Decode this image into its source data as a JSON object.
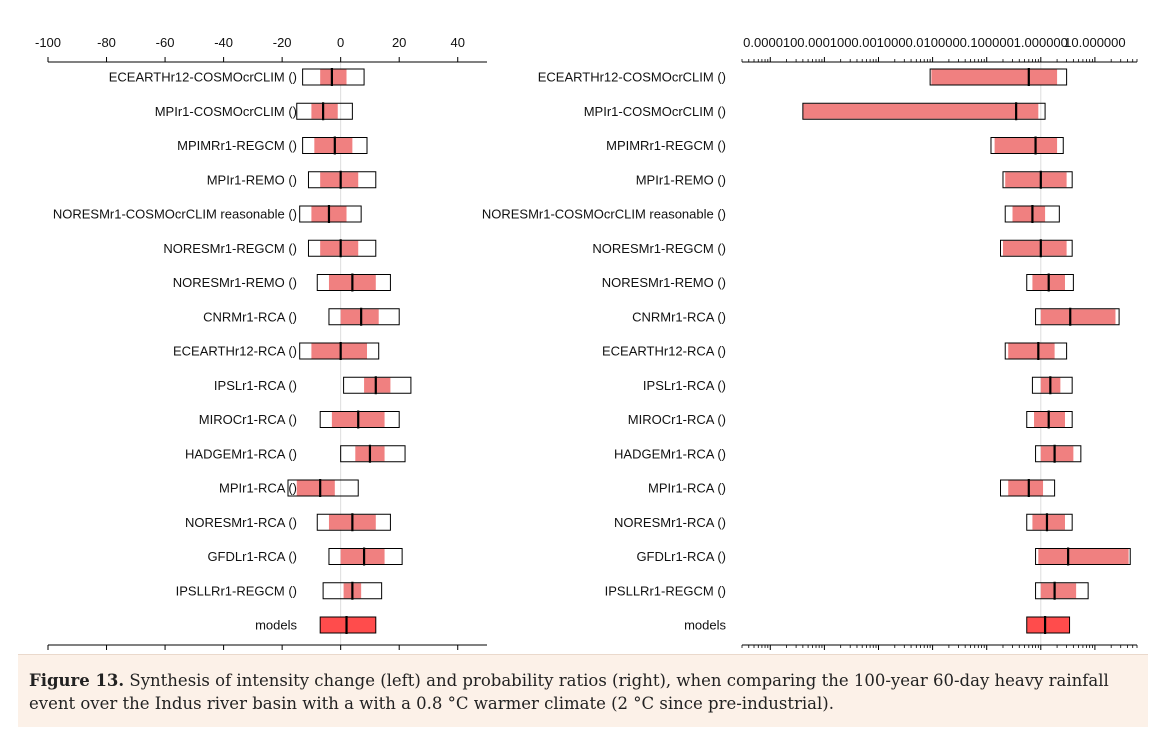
{
  "chart_data": [
    {
      "type": "box",
      "title": "",
      "xlabel": "",
      "ylabel": "",
      "xscale": "linear",
      "xlim": [
        -100,
        50
      ],
      "ticks": [
        -100,
        -80,
        -60,
        -40,
        -20,
        0,
        20,
        40
      ],
      "tick_labels": [
        "-100",
        "-80",
        "-60",
        "-40",
        "-20",
        "0",
        "20",
        "40"
      ],
      "reference_line": 0,
      "series": [
        {
          "name": "ECEARTHr12-COSMOcrCLIM ()",
          "best": -3,
          "ci_low": -13,
          "ci_high": 8,
          "shade_low": -7,
          "shade_high": 2
        },
        {
          "name": "MPIr1-COSMOcrCLIM ()",
          "best": -6,
          "ci_low": -15,
          "ci_high": 4,
          "shade_low": -10,
          "shade_high": -1
        },
        {
          "name": "MPIMRr1-REGCM ()",
          "best": -2,
          "ci_low": -13,
          "ci_high": 9,
          "shade_low": -9,
          "shade_high": 4
        },
        {
          "name": "MPIr1-REMO ()",
          "best": 0,
          "ci_low": -11,
          "ci_high": 12,
          "shade_low": -7,
          "shade_high": 6
        },
        {
          "name": "NORESMr1-COSMOcrCLIM reasonable ()",
          "best": -4,
          "ci_low": -14,
          "ci_high": 7,
          "shade_low": -10,
          "shade_high": 2
        },
        {
          "name": "NORESMr1-REGCM ()",
          "best": 0,
          "ci_low": -11,
          "ci_high": 12,
          "shade_low": -7,
          "shade_high": 6
        },
        {
          "name": "NORESMr1-REMO ()",
          "best": 4,
          "ci_low": -8,
          "ci_high": 17,
          "shade_low": -4,
          "shade_high": 12
        },
        {
          "name": "CNRMr1-RCA ()",
          "best": 7,
          "ci_low": -4,
          "ci_high": 20,
          "shade_low": 0,
          "shade_high": 13
        },
        {
          "name": "ECEARTHr12-RCA ()",
          "best": 0,
          "ci_low": -14,
          "ci_high": 13,
          "shade_low": -10,
          "shade_high": 9
        },
        {
          "name": "IPSLr1-RCA ()",
          "best": 12,
          "ci_low": 1,
          "ci_high": 24,
          "shade_low": 8,
          "shade_high": 17
        },
        {
          "name": "MIROCr1-RCA ()",
          "best": 6,
          "ci_low": -7,
          "ci_high": 20,
          "shade_low": -3,
          "shade_high": 15
        },
        {
          "name": "HADGEMr1-RCA ()",
          "best": 10,
          "ci_low": 0,
          "ci_high": 22,
          "shade_low": 5,
          "shade_high": 15
        },
        {
          "name": "MPIr1-RCA ()",
          "best": -7,
          "ci_low": -18,
          "ci_high": 6,
          "shade_low": -15,
          "shade_high": -2
        },
        {
          "name": "NORESMr1-RCA ()",
          "best": 4,
          "ci_low": -8,
          "ci_high": 17,
          "shade_low": -4,
          "shade_high": 12
        },
        {
          "name": "GFDLr1-RCA ()",
          "best": 8,
          "ci_low": -4,
          "ci_high": 21,
          "shade_low": 0,
          "shade_high": 15
        },
        {
          "name": "IPSLLRr1-REGCM ()",
          "best": 4,
          "ci_low": -6,
          "ci_high": 14,
          "shade_low": 1,
          "shade_high": 7
        },
        {
          "name": "models",
          "best": 2,
          "ci_low": -7,
          "ci_high": 12,
          "shade_low": -7,
          "shade_high": 12
        }
      ]
    },
    {
      "type": "box",
      "title": "",
      "xlabel": "",
      "ylabel": "",
      "xscale": "log",
      "xlim": [
        3e-06,
        60
      ],
      "ticks": [
        1e-05,
        0.0001,
        0.001,
        0.01,
        0.1,
        1,
        10
      ],
      "tick_labels": [
        "0.000010",
        "0.000100",
        "0.001000",
        "0.010000",
        "0.100000",
        "1.000000",
        "10.000000"
      ],
      "reference_line": 1,
      "series": [
        {
          "name": "ECEARTHr12-COSMOcrCLIM ()",
          "best": 0.6,
          "ci_low": 0.009,
          "ci_high": 3.0,
          "shade_low": 0.0095,
          "shade_high": 2.0
        },
        {
          "name": "MPIr1-COSMOcrCLIM ()",
          "best": 0.35,
          "ci_low": 4e-05,
          "ci_high": 1.2,
          "shade_low": 4e-05,
          "shade_high": 0.9
        },
        {
          "name": "MPIMRr1-REGCM ()",
          "best": 0.8,
          "ci_low": 0.12,
          "ci_high": 2.6,
          "shade_low": 0.14,
          "shade_high": 2.0
        },
        {
          "name": "MPIr1-REMO ()",
          "best": 1.0,
          "ci_low": 0.2,
          "ci_high": 3.8,
          "shade_low": 0.22,
          "shade_high": 3.0
        },
        {
          "name": "NORESMr1-COSMOcrCLIM reasonable ()",
          "best": 0.7,
          "ci_low": 0.22,
          "ci_high": 2.2,
          "shade_low": 0.3,
          "shade_high": 1.2
        },
        {
          "name": "NORESMr1-REGCM ()",
          "best": 1.0,
          "ci_low": 0.18,
          "ci_high": 3.8,
          "shade_low": 0.2,
          "shade_high": 3.0
        },
        {
          "name": "NORESMr1-REMO ()",
          "best": 1.4,
          "ci_low": 0.55,
          "ci_high": 4.0,
          "shade_low": 0.7,
          "shade_high": 2.8
        },
        {
          "name": "CNRMr1-RCA ()",
          "best": 3.5,
          "ci_low": 0.8,
          "ci_high": 28,
          "shade_low": 1.0,
          "shade_high": 24
        },
        {
          "name": "ECEARTHr12-RCA ()",
          "best": 0.9,
          "ci_low": 0.22,
          "ci_high": 3.0,
          "shade_low": 0.25,
          "shade_high": 1.8
        },
        {
          "name": "IPSLr1-RCA ()",
          "best": 1.5,
          "ci_low": 0.7,
          "ci_high": 3.8,
          "shade_low": 1.0,
          "shade_high": 2.3
        },
        {
          "name": "MIROCr1-RCA ()",
          "best": 1.4,
          "ci_low": 0.55,
          "ci_high": 3.8,
          "shade_low": 0.75,
          "shade_high": 2.8
        },
        {
          "name": "HADGEMr1-RCA ()",
          "best": 1.8,
          "ci_low": 0.8,
          "ci_high": 5.5,
          "shade_low": 1.0,
          "shade_high": 4.0
        },
        {
          "name": "MPIr1-RCA ()",
          "best": 0.6,
          "ci_low": 0.18,
          "ci_high": 1.8,
          "shade_low": 0.25,
          "shade_high": 1.1
        },
        {
          "name": "NORESMr1-RCA ()",
          "best": 1.3,
          "ci_low": 0.55,
          "ci_high": 3.8,
          "shade_low": 0.7,
          "shade_high": 2.8
        },
        {
          "name": "GFDLr1-RCA ()",
          "best": 3.2,
          "ci_low": 0.8,
          "ci_high": 45,
          "shade_low": 0.9,
          "shade_high": 42
        },
        {
          "name": "IPSLLRr1-REGCM ()",
          "best": 1.8,
          "ci_low": 0.8,
          "ci_high": 7.5,
          "shade_low": 1.0,
          "shade_high": 4.5
        },
        {
          "name": "models",
          "best": 1.2,
          "ci_low": 0.55,
          "ci_high": 3.4,
          "shade_low": 0.55,
          "shade_high": 3.4
        }
      ]
    }
  ],
  "caption": {
    "label": "Figure 13.",
    "text": " Synthesis of intensity change (left) and probability ratios (right), when comparing the 100-year 60-day heavy rainfall event over the Indus river basin with a with a 0.8 °C warmer climate (2 °C since pre-industrial)."
  },
  "colors": {
    "shade": "#f08080",
    "models_fill": "#ff4c4c",
    "axis": "#000000",
    "reference_line": "#dddddd"
  }
}
